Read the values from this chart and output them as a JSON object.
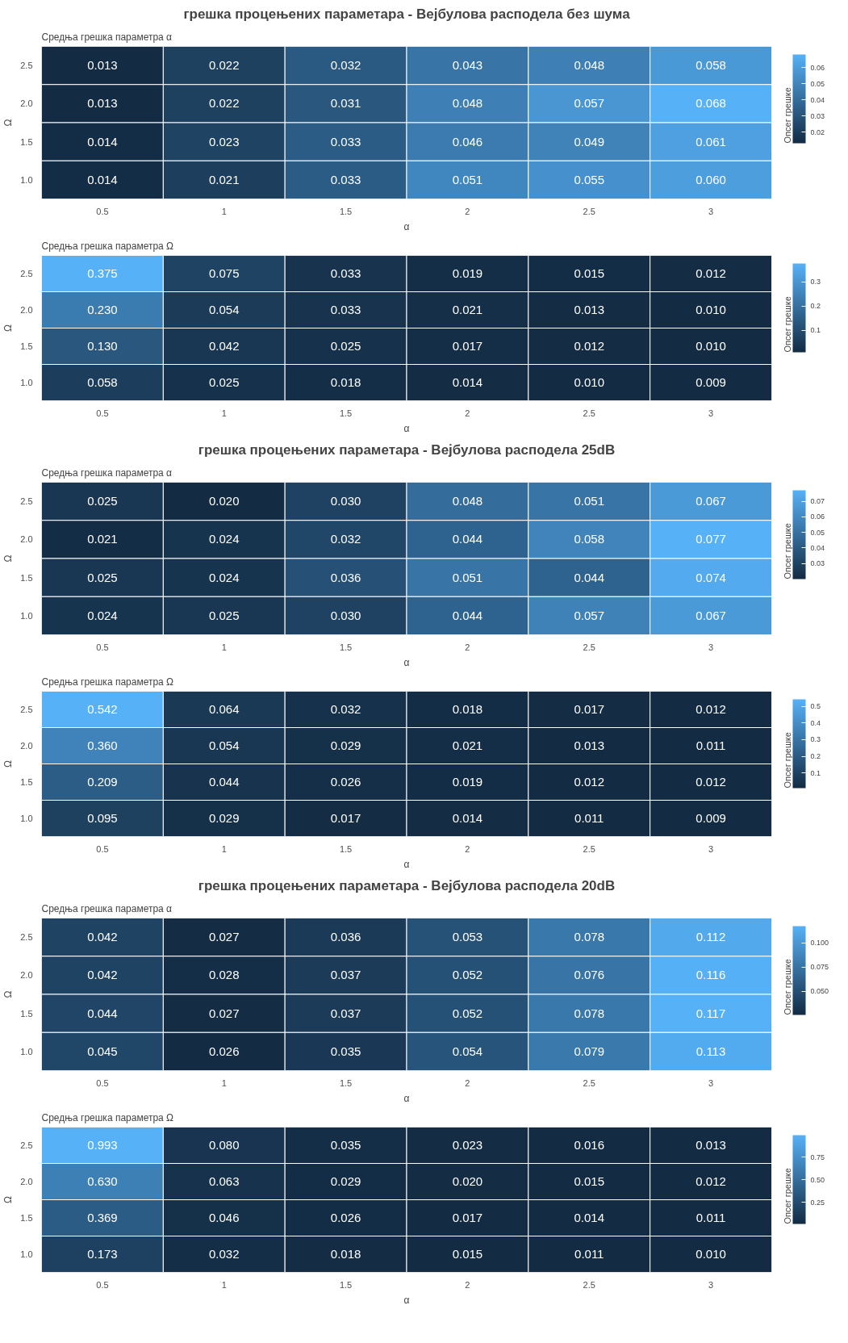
{
  "chart_data": [
    {
      "type": "heatmap",
      "title": "грешка процењених параметара - Вејбулова расподела без шума",
      "subtitle": "Средња грешка параметра α",
      "xlabel": "α",
      "ylabel": "Ω",
      "clabel": "Опсег грешке",
      "categories": [
        "0.5",
        "1",
        "1.5",
        "2",
        "2.5",
        "3"
      ],
      "y_categories": [
        "2.5",
        "2.0",
        "1.5",
        "1.0"
      ],
      "cells": [
        [
          0.013,
          0.022,
          0.032,
          0.043,
          0.048,
          0.058
        ],
        [
          0.013,
          0.022,
          0.031,
          0.048,
          0.057,
          0.068
        ],
        [
          0.014,
          0.023,
          0.033,
          0.046,
          0.049,
          0.061
        ],
        [
          0.014,
          0.021,
          0.033,
          0.051,
          0.055,
          0.06
        ]
      ],
      "cell_labels": [
        [
          "0.013",
          "0.022",
          "0.032",
          "0.043",
          "0.048",
          "0.058"
        ],
        [
          "0.013",
          "0.022",
          "0.031",
          "0.048",
          "0.057",
          "0.068"
        ],
        [
          "0.014",
          "0.023",
          "0.033",
          "0.046",
          "0.049",
          "0.061"
        ],
        [
          "0.014",
          "0.021",
          "0.033",
          "0.051",
          "0.055",
          "0.060"
        ]
      ],
      "clim": [
        0.013,
        0.068
      ],
      "cticks": [
        0.02,
        0.03,
        0.04,
        0.05,
        0.06
      ]
    },
    {
      "type": "heatmap",
      "subtitle": "Средња грешка параметра Ω",
      "xlabel": "α",
      "ylabel": "Ω",
      "clabel": "Опсег грешке",
      "categories": [
        "0.5",
        "1",
        "1.5",
        "2",
        "2.5",
        "3"
      ],
      "y_categories": [
        "2.5",
        "2.0",
        "1.5",
        "1.0"
      ],
      "cells": [
        [
          0.375,
          0.075,
          0.033,
          0.019,
          0.015,
          0.012
        ],
        [
          0.23,
          0.054,
          0.033,
          0.021,
          0.013,
          0.01
        ],
        [
          0.13,
          0.042,
          0.025,
          0.017,
          0.012,
          0.01
        ],
        [
          0.058,
          0.025,
          0.018,
          0.014,
          0.01,
          0.009
        ]
      ],
      "cell_labels": [
        [
          "0.375",
          "0.075",
          "0.033",
          "0.019",
          "0.015",
          "0.012"
        ],
        [
          "0.230",
          "0.054",
          "0.033",
          "0.021",
          "0.013",
          "0.010"
        ],
        [
          "0.130",
          "0.042",
          "0.025",
          "0.017",
          "0.012",
          "0.010"
        ],
        [
          "0.058",
          "0.025",
          "0.018",
          "0.014",
          "0.010",
          "0.009"
        ]
      ],
      "clim": [
        0.009,
        0.375
      ],
      "cticks": [
        0.1,
        0.2,
        0.3
      ]
    },
    {
      "type": "heatmap",
      "title": "грешка процењених параметара - Вејбулова расподела 25dB",
      "subtitle": "Средња грешка параметра α",
      "xlabel": "α",
      "ylabel": "Ω",
      "clabel": "Опсег грешке",
      "categories": [
        "0.5",
        "1",
        "1.5",
        "2",
        "2.5",
        "3"
      ],
      "y_categories": [
        "2.5",
        "2.0",
        "1.5",
        "1.0"
      ],
      "cells": [
        [
          0.025,
          0.02,
          0.03,
          0.048,
          0.051,
          0.067
        ],
        [
          0.021,
          0.024,
          0.032,
          0.044,
          0.058,
          0.077
        ],
        [
          0.025,
          0.024,
          0.036,
          0.051,
          0.044,
          0.074
        ],
        [
          0.024,
          0.025,
          0.03,
          0.044,
          0.057,
          0.067
        ]
      ],
      "cell_labels": [
        [
          "0.025",
          "0.020",
          "0.030",
          "0.048",
          "0.051",
          "0.067"
        ],
        [
          "0.021",
          "0.024",
          "0.032",
          "0.044",
          "0.058",
          "0.077"
        ],
        [
          "0.025",
          "0.024",
          "0.036",
          "0.051",
          "0.044",
          "0.074"
        ],
        [
          "0.024",
          "0.025",
          "0.030",
          "0.044",
          "0.057",
          "0.067"
        ]
      ],
      "clim": [
        0.02,
        0.077
      ],
      "cticks": [
        0.03,
        0.04,
        0.05,
        0.06,
        0.07
      ]
    },
    {
      "type": "heatmap",
      "subtitle": "Средња грешка параметра Ω",
      "xlabel": "α",
      "ylabel": "Ω",
      "clabel": "Опсег грешке",
      "categories": [
        "0.5",
        "1",
        "1.5",
        "2",
        "2.5",
        "3"
      ],
      "y_categories": [
        "2.5",
        "2.0",
        "1.5",
        "1.0"
      ],
      "cells": [
        [
          0.542,
          0.064,
          0.032,
          0.018,
          0.017,
          0.012
        ],
        [
          0.36,
          0.054,
          0.029,
          0.021,
          0.013,
          0.011
        ],
        [
          0.209,
          0.044,
          0.026,
          0.019,
          0.012,
          0.012
        ],
        [
          0.095,
          0.029,
          0.017,
          0.014,
          0.011,
          0.009
        ]
      ],
      "cell_labels": [
        [
          "0.542",
          "0.064",
          "0.032",
          "0.018",
          "0.017",
          "0.012"
        ],
        [
          "0.360",
          "0.054",
          "0.029",
          "0.021",
          "0.013",
          "0.011"
        ],
        [
          "0.209",
          "0.044",
          "0.026",
          "0.019",
          "0.012",
          "0.012"
        ],
        [
          "0.095",
          "0.029",
          "0.017",
          "0.014",
          "0.011",
          "0.009"
        ]
      ],
      "clim": [
        0.009,
        0.542
      ],
      "cticks": [
        0.1,
        0.2,
        0.3,
        0.4,
        0.5
      ]
    },
    {
      "type": "heatmap",
      "title": "грешка процењених параметара - Вејбулова расподела 20dB",
      "subtitle": "Средња грешка параметра α",
      "xlabel": "α",
      "ylabel": "Ω",
      "clabel": "Опсег грешке",
      "categories": [
        "0.5",
        "1",
        "1.5",
        "2",
        "2.5",
        "3"
      ],
      "y_categories": [
        "2.5",
        "2.0",
        "1.5",
        "1.0"
      ],
      "cells": [
        [
          0.042,
          0.027,
          0.036,
          0.053,
          0.078,
          0.112
        ],
        [
          0.042,
          0.028,
          0.037,
          0.052,
          0.076,
          0.116
        ],
        [
          0.044,
          0.027,
          0.037,
          0.052,
          0.078,
          0.117
        ],
        [
          0.045,
          0.026,
          0.035,
          0.054,
          0.079,
          0.113
        ]
      ],
      "cell_labels": [
        [
          "0.042",
          "0.027",
          "0.036",
          "0.053",
          "0.078",
          "0.112"
        ],
        [
          "0.042",
          "0.028",
          "0.037",
          "0.052",
          "0.076",
          "0.116"
        ],
        [
          "0.044",
          "0.027",
          "0.037",
          "0.052",
          "0.078",
          "0.117"
        ],
        [
          "0.045",
          "0.026",
          "0.035",
          "0.054",
          "0.079",
          "0.113"
        ]
      ],
      "clim": [
        0.026,
        0.117
      ],
      "cticks": [
        {
          "value": 0.05,
          "label": "0.050"
        },
        0.075,
        {
          "value": 0.1,
          "label": "0.100"
        }
      ]
    },
    {
      "type": "heatmap",
      "subtitle": "Средња грешка параметра Ω",
      "xlabel": "α",
      "ylabel": "Ω",
      "clabel": "Опсег грешке",
      "categories": [
        "0.5",
        "1",
        "1.5",
        "2",
        "2.5",
        "3"
      ],
      "y_categories": [
        "2.5",
        "2.0",
        "1.5",
        "1.0"
      ],
      "cells": [
        [
          0.993,
          0.08,
          0.035,
          0.023,
          0.016,
          0.013
        ],
        [
          0.63,
          0.063,
          0.029,
          0.02,
          0.015,
          0.012
        ],
        [
          0.369,
          0.046,
          0.026,
          0.017,
          0.014,
          0.011
        ],
        [
          0.173,
          0.032,
          0.018,
          0.015,
          0.011,
          0.01
        ]
      ],
      "cell_labels": [
        [
          "0.993",
          "0.080",
          "0.035",
          "0.023",
          "0.016",
          "0.013"
        ],
        [
          "0.630",
          "0.063",
          "0.029",
          "0.020",
          "0.015",
          "0.012"
        ],
        [
          "0.369",
          "0.046",
          "0.026",
          "0.017",
          "0.014",
          "0.011"
        ],
        [
          "0.173",
          "0.032",
          "0.018",
          "0.015",
          "0.011",
          "0.010"
        ]
      ],
      "clim": [
        0.01,
        0.993
      ],
      "cticks": [
        0.25,
        {
          "value": 0.5,
          "label": "0.50"
        },
        0.75
      ]
    }
  ]
}
